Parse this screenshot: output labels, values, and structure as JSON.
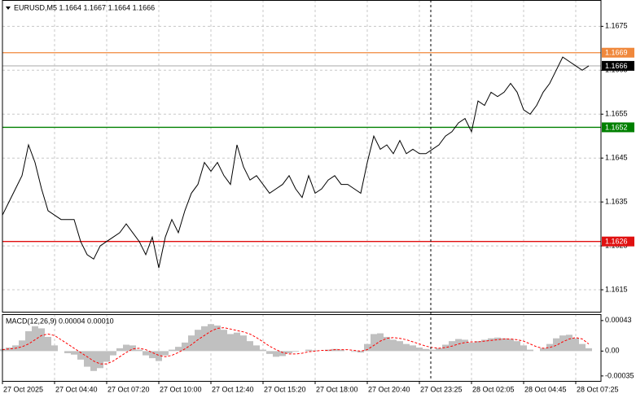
{
  "chart_data": [
    {
      "type": "line",
      "title": "EURUSD,M5  1.1664 1.1667 1.1664 1.1666",
      "color": "#000000",
      "grid": true,
      "ylim": [
        1.161,
        1.1681
      ],
      "yticks": [
        1.1615,
        1.1625,
        1.1635,
        1.1645,
        1.1655,
        1.1665,
        1.1675
      ],
      "hlines": [
        {
          "value": 1.1669,
          "color": "#f0883c"
        },
        {
          "value": 1.1666,
          "color": "#c0c0c0"
        },
        {
          "value": 1.1652,
          "color": "#008000"
        },
        {
          "value": 1.1626,
          "color": "#e01010"
        }
      ],
      "categories": [
        "27 Oct 2025",
        null,
        null,
        null,
        null,
        null,
        null,
        null,
        "27 Oct 04:40",
        null,
        null,
        null,
        null,
        null,
        null,
        null,
        "27 Oct 07:20",
        null,
        null,
        null,
        null,
        null,
        null,
        null,
        "27 Oct 10:00",
        null,
        null,
        null,
        null,
        null,
        null,
        null,
        "27 Oct 12:40",
        null,
        null,
        null,
        null,
        null,
        null,
        null,
        "27 Oct 15:20",
        null,
        null,
        null,
        null,
        null,
        null,
        null,
        "27 Oct 18:00",
        null,
        null,
        null,
        null,
        null,
        null,
        null,
        "27 Oct 20:40",
        null,
        null,
        null,
        null,
        null,
        null,
        null,
        "27 Oct 23:25",
        null,
        null,
        null,
        null,
        null,
        null,
        null,
        "28 Oct 02:05",
        null,
        null,
        null,
        null,
        null,
        null,
        null,
        "28 Oct 04:45",
        null,
        null,
        null,
        null,
        null,
        null,
        null,
        "28 Oct 07:25",
        null,
        null
      ],
      "values": [
        1.1632,
        1.1635,
        1.1638,
        1.1641,
        1.1648,
        1.1644,
        1.1638,
        1.1633,
        1.1632,
        1.1631,
        1.1631,
        1.1631,
        1.1626,
        1.1623,
        1.1622,
        1.1625,
        1.1626,
        1.1627,
        1.1628,
        1.163,
        1.1628,
        1.1626,
        1.1623,
        1.1627,
        1.162,
        1.1627,
        1.1631,
        1.1628,
        1.1633,
        1.1637,
        1.1639,
        1.1644,
        1.1642,
        1.1644,
        1.1641,
        1.1639,
        1.1648,
        1.1643,
        1.164,
        1.1641,
        1.1639,
        1.1637,
        1.1638,
        1.1639,
        1.1641,
        1.1638,
        1.1636,
        1.1641,
        1.1637,
        1.1638,
        1.164,
        1.1641,
        1.1639,
        1.1639,
        1.1638,
        1.1637,
        1.1644,
        1.165,
        1.1647,
        1.1648,
        1.1646,
        1.1649,
        1.1646,
        1.1647,
        1.1646,
        1.1646,
        1.1647,
        1.1648,
        1.165,
        1.1651,
        1.1653,
        1.1654,
        1.1651,
        1.1658,
        1.1657,
        1.166,
        1.1659,
        1.166,
        1.1662,
        1.166,
        1.1656,
        1.1655,
        1.1657,
        1.166,
        1.1662,
        1.1665,
        1.1668,
        1.1667,
        1.1666,
        1.1665,
        1.1666
      ]
    },
    {
      "type": "macd",
      "title": "MACD(12,26,9) 0.00004 0.00010",
      "color": "#c0c0c0",
      "signal_color": "#ff0000",
      "ylim": [
        -0.00042,
        0.00052
      ],
      "yticks": [
        -0.00035,
        {
          "value": 0,
          "label": "0.00"
        },
        0.00043
      ],
      "values": [
        3e-05,
        5e-05,
        8e-05,
        0.00015,
        0.00028,
        0.00035,
        0.00032,
        0.0002,
        8e-05,
        0,
        -3e-05,
        -5e-05,
        -0.00012,
        -0.00022,
        -0.00028,
        -0.00024,
        -0.00015,
        -6e-05,
        4e-05,
        9e-05,
        8e-05,
        2e-05,
        -6e-05,
        -0.0001,
        -0.00014,
        -6e-05,
        2e-05,
        6e-05,
        0.00012,
        0.00022,
        0.0003,
        0.00035,
        0.00038,
        0.00036,
        0.0003,
        0.00024,
        0.00026,
        0.00022,
        0.00014,
        8e-05,
        2e-05,
        -4e-05,
        -8e-05,
        -7e-05,
        -3e-05,
        -1e-05,
        0,
        2e-05,
        1e-05,
        0,
        2e-05,
        3e-05,
        2e-05,
        0,
        -1e-05,
        -2e-05,
        0.0001,
        0.00024,
        0.00025,
        0.0002,
        0.00016,
        0.00014,
        0.0001,
        8e-05,
        5e-05,
        3e-05,
        2e-05,
        4e-05,
        9e-05,
        0.00014,
        0.00017,
        0.00016,
        0.00012,
        0.00014,
        0.00016,
        0.00018,
        0.00019,
        0.00018,
        0.00017,
        0.00014,
        8e-05,
        2e-05,
        0,
        4e-05,
        0.0001,
        0.00018,
        0.00022,
        0.00023,
        0.00018,
        0.0001,
        4e-05
      ],
      "signal": [
        2e-05,
        3e-05,
        4e-05,
        6e-05,
        0.0001,
        0.00016,
        0.00022,
        0.00024,
        0.00022,
        0.00016,
        0.0001,
        4e-05,
        -2e-05,
        -8e-05,
        -0.00014,
        -0.00018,
        -0.00018,
        -0.00014,
        -8e-05,
        -2e-05,
        3e-05,
        4e-05,
        2e-05,
        -2e-05,
        -6e-05,
        -8e-05,
        -6e-05,
        -2e-05,
        3e-05,
        9e-05,
        0.00016,
        0.00022,
        0.00028,
        0.00032,
        0.00033,
        0.00031,
        0.00029,
        0.00027,
        0.00024,
        0.00019,
        0.00013,
        7e-05,
        2e-05,
        -2e-05,
        -4e-05,
        -4e-05,
        -3e-05,
        -1e-05,
        0,
        1e-05,
        1e-05,
        2e-05,
        2e-05,
        2e-05,
        1e-05,
        0,
        2e-05,
        8e-05,
        0.00014,
        0.00018,
        0.00019,
        0.00018,
        0.00016,
        0.00013,
        0.0001,
        7e-05,
        5e-05,
        4e-05,
        5e-05,
        7e-05,
        0.0001,
        0.00012,
        0.00013,
        0.00013,
        0.00014,
        0.00015,
        0.00016,
        0.00017,
        0.00017,
        0.00016,
        0.00014,
        0.0001,
        6e-05,
        4e-05,
        5e-05,
        8e-05,
        0.00013,
        0.00017,
        0.00019,
        0.00017,
        0.0001
      ]
    }
  ]
}
